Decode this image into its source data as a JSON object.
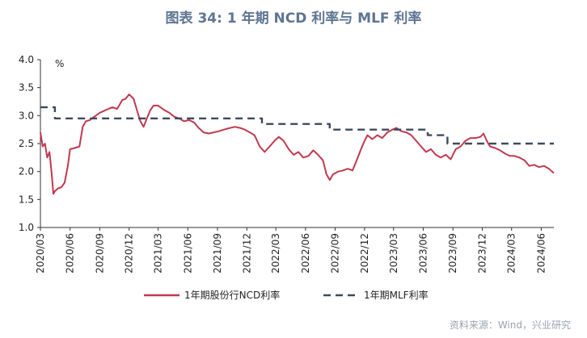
{
  "chart_data": {
    "type": "line",
    "title": "图表 34: 1 年期 NCD 利率与 MLF 利率",
    "unit_label": "%",
    "ylim": [
      1.0,
      4.0
    ],
    "yticks": [
      "4.0",
      "3.5",
      "3.0",
      "2.5",
      "2.0",
      "1.5",
      "1.0"
    ],
    "xticks": [
      "2020/03",
      "2020/06",
      "2020/09",
      "2020/12",
      "2021/03",
      "2021/06",
      "2021/09",
      "2021/12",
      "2022/03",
      "2022/06",
      "2022/09",
      "2022/12",
      "2023/03",
      "2023/06",
      "2023/09",
      "2023/12",
      "2024/03",
      "2024/06"
    ],
    "xrange": [
      "2020-03-01",
      "2024-07-10"
    ],
    "grid": false,
    "legend_position": "bottom",
    "series": [
      {
        "name": "1年期股份行NCD利率",
        "color": "#c0394f",
        "style": "solid",
        "points": [
          [
            "2020-03-01",
            2.7
          ],
          [
            "2020-03-08",
            2.45
          ],
          [
            "2020-03-15",
            2.5
          ],
          [
            "2020-03-22",
            2.25
          ],
          [
            "2020-03-29",
            2.35
          ],
          [
            "2020-04-05",
            1.95
          ],
          [
            "2020-04-10",
            1.6
          ],
          [
            "2020-04-15",
            1.65
          ],
          [
            "2020-04-25",
            1.7
          ],
          [
            "2020-05-05",
            1.72
          ],
          [
            "2020-05-15",
            1.8
          ],
          [
            "2020-05-25",
            2.1
          ],
          [
            "2020-06-01",
            2.4
          ],
          [
            "2020-06-15",
            2.42
          ],
          [
            "2020-06-30",
            2.45
          ],
          [
            "2020-07-10",
            2.8
          ],
          [
            "2020-07-20",
            2.9
          ],
          [
            "2020-08-01",
            2.92
          ],
          [
            "2020-08-15",
            2.98
          ],
          [
            "2020-09-01",
            3.05
          ],
          [
            "2020-09-20",
            3.1
          ],
          [
            "2020-10-10",
            3.15
          ],
          [
            "2020-10-25",
            3.12
          ],
          [
            "2020-11-10",
            3.28
          ],
          [
            "2020-11-20",
            3.3
          ],
          [
            "2020-12-01",
            3.38
          ],
          [
            "2020-12-15",
            3.3
          ],
          [
            "2020-12-25",
            3.1
          ],
          [
            "2021-01-05",
            2.9
          ],
          [
            "2021-01-15",
            2.8
          ],
          [
            "2021-01-25",
            2.95
          ],
          [
            "2021-02-05",
            3.1
          ],
          [
            "2021-02-15",
            3.18
          ],
          [
            "2021-03-01",
            3.18
          ],
          [
            "2021-03-20",
            3.1
          ],
          [
            "2021-04-05",
            3.05
          ],
          [
            "2021-04-20",
            2.98
          ],
          [
            "2021-05-05",
            2.95
          ],
          [
            "2021-05-20",
            2.9
          ],
          [
            "2021-06-05",
            2.92
          ],
          [
            "2021-06-20",
            2.88
          ],
          [
            "2021-07-05",
            2.78
          ],
          [
            "2021-07-20",
            2.7
          ],
          [
            "2021-08-05",
            2.68
          ],
          [
            "2021-08-20",
            2.7
          ],
          [
            "2021-09-05",
            2.72
          ],
          [
            "2021-09-20",
            2.75
          ],
          [
            "2021-10-10",
            2.78
          ],
          [
            "2021-10-25",
            2.8
          ],
          [
            "2021-11-10",
            2.78
          ],
          [
            "2021-11-25",
            2.75
          ],
          [
            "2021-12-10",
            2.7
          ],
          [
            "2021-12-25",
            2.65
          ],
          [
            "2022-01-10",
            2.45
          ],
          [
            "2022-01-25",
            2.35
          ],
          [
            "2022-02-10",
            2.45
          ],
          [
            "2022-02-25",
            2.55
          ],
          [
            "2022-03-10",
            2.62
          ],
          [
            "2022-03-25",
            2.55
          ],
          [
            "2022-04-10",
            2.4
          ],
          [
            "2022-04-25",
            2.3
          ],
          [
            "2022-05-10",
            2.35
          ],
          [
            "2022-05-25",
            2.25
          ],
          [
            "2022-06-10",
            2.28
          ],
          [
            "2022-06-25",
            2.38
          ],
          [
            "2022-07-10",
            2.3
          ],
          [
            "2022-07-25",
            2.2
          ],
          [
            "2022-08-05",
            1.95
          ],
          [
            "2022-08-15",
            1.85
          ],
          [
            "2022-08-25",
            1.95
          ],
          [
            "2022-09-10",
            2.0
          ],
          [
            "2022-09-25",
            2.02
          ],
          [
            "2022-10-10",
            2.05
          ],
          [
            "2022-10-25",
            2.02
          ],
          [
            "2022-11-10",
            2.25
          ],
          [
            "2022-11-20",
            2.4
          ],
          [
            "2022-12-01",
            2.55
          ],
          [
            "2022-12-10",
            2.65
          ],
          [
            "2022-12-25",
            2.58
          ],
          [
            "2023-01-10",
            2.65
          ],
          [
            "2023-01-25",
            2.6
          ],
          [
            "2023-02-10",
            2.7
          ],
          [
            "2023-02-25",
            2.75
          ],
          [
            "2023-03-10",
            2.78
          ],
          [
            "2023-03-25",
            2.72
          ],
          [
            "2023-04-10",
            2.7
          ],
          [
            "2023-04-25",
            2.65
          ],
          [
            "2023-05-10",
            2.55
          ],
          [
            "2023-05-25",
            2.45
          ],
          [
            "2023-06-10",
            2.35
          ],
          [
            "2023-06-25",
            2.4
          ],
          [
            "2023-07-10",
            2.3
          ],
          [
            "2023-07-25",
            2.25
          ],
          [
            "2023-08-10",
            2.3
          ],
          [
            "2023-08-25",
            2.22
          ],
          [
            "2023-09-10",
            2.4
          ],
          [
            "2023-09-25",
            2.45
          ],
          [
            "2023-10-10",
            2.55
          ],
          [
            "2023-10-25",
            2.6
          ],
          [
            "2023-11-10",
            2.6
          ],
          [
            "2023-11-25",
            2.62
          ],
          [
            "2023-12-05",
            2.68
          ],
          [
            "2023-12-15",
            2.55
          ],
          [
            "2023-12-25",
            2.45
          ],
          [
            "2024-01-10",
            2.42
          ],
          [
            "2024-01-25",
            2.38
          ],
          [
            "2024-02-10",
            2.32
          ],
          [
            "2024-02-25",
            2.28
          ],
          [
            "2024-03-10",
            2.28
          ],
          [
            "2024-03-25",
            2.25
          ],
          [
            "2024-04-10",
            2.2
          ],
          [
            "2024-04-25",
            2.1
          ],
          [
            "2024-05-10",
            2.12
          ],
          [
            "2024-05-25",
            2.08
          ],
          [
            "2024-06-10",
            2.1
          ],
          [
            "2024-06-25",
            2.05
          ],
          [
            "2024-07-10",
            1.97
          ]
        ]
      },
      {
        "name": "1年期MLF利率",
        "color": "#3d4a5c",
        "style": "dashed",
        "points": [
          [
            "2020-03-01",
            3.15
          ],
          [
            "2020-04-15",
            3.15
          ],
          [
            "2020-04-15",
            2.95
          ],
          [
            "2022-01-17",
            2.95
          ],
          [
            "2022-01-17",
            2.85
          ],
          [
            "2022-08-15",
            2.85
          ],
          [
            "2022-08-15",
            2.75
          ],
          [
            "2023-06-15",
            2.75
          ],
          [
            "2023-06-15",
            2.65
          ],
          [
            "2023-08-15",
            2.65
          ],
          [
            "2023-08-15",
            2.5
          ],
          [
            "2024-07-10",
            2.5
          ]
        ]
      }
    ],
    "source": "资料来源：Wind，兴业研究"
  }
}
